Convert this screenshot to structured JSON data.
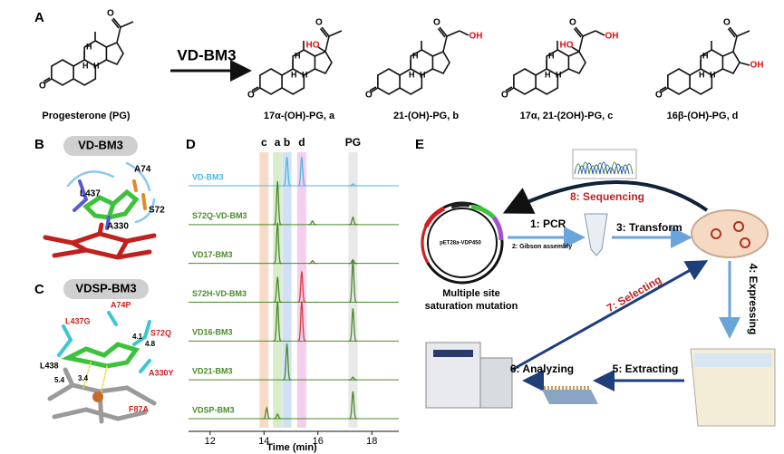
{
  "panels": {
    "a": "A",
    "b": "B",
    "c": "C",
    "d": "D",
    "e": "E"
  },
  "panel_a": {
    "enzyme": "VD-BM3",
    "ketone": "O",
    "ring_h": "H",
    "compounds": [
      {
        "label": "Progesterone (PG)",
        "groups": []
      },
      {
        "label": "17α-(OH)-PG, a",
        "groups": [
          "HO"
        ]
      },
      {
        "label": "21-(OH)-PG, b",
        "groups": [
          "OH"
        ]
      },
      {
        "label": "17α, 21-(2OH)-PG, c",
        "groups": [
          "HO",
          "OH"
        ]
      },
      {
        "label": "16β-(OH)-PG, d",
        "groups": [
          "OH"
        ]
      }
    ]
  },
  "panel_b": {
    "title": "VD-BM3",
    "residues": [
      "L437",
      "A74",
      "S72",
      "A330"
    ]
  },
  "panel_c": {
    "title": "VDSP-BM3",
    "mutations": [
      "A74P",
      "L437G",
      "S72Q",
      "A330Y",
      "F87A"
    ],
    "residues": [
      "L438"
    ],
    "distances": [
      "4.1",
      "4.8",
      "5.4",
      "3.4"
    ]
  },
  "chromatogram": {
    "x_label": "Time (min)",
    "xlim": [
      11.2,
      19
    ],
    "xticks": [
      12,
      14,
      16,
      18
    ],
    "bands": [
      {
        "label": "c",
        "center": 14,
        "color": "#f6d2b8"
      },
      {
        "label": "a",
        "center": 14.5,
        "color": "#cfe8c0"
      },
      {
        "label": "b",
        "center": 14.85,
        "color": "#c6d8f0"
      },
      {
        "label": "d",
        "center": 15.4,
        "color": "#f2c2ea"
      },
      {
        "label": "PG",
        "center": 17.3,
        "color": "#e2e2e2"
      }
    ],
    "traces": [
      {
        "name": "VD-BM3",
        "color": "#4fb8e0",
        "peaks": [
          {
            "time": 14.85,
            "height": 32
          },
          {
            "time": 15.4,
            "height": 32
          },
          {
            "time": 17.3,
            "height": 2
          }
        ]
      },
      {
        "name": "S72Q-VD-BM3",
        "color": "#4a8a2a",
        "peaks": [
          {
            "time": 14.5,
            "height": 48
          },
          {
            "time": 15.8,
            "height": 4
          },
          {
            "time": 17.3,
            "height": 8
          }
        ]
      },
      {
        "name": "VD17-BM3",
        "color": "#4a8a2a",
        "peaks": [
          {
            "time": 14.5,
            "height": 45
          },
          {
            "time": 15.8,
            "height": 3
          },
          {
            "time": 17.3,
            "height": 4
          }
        ]
      },
      {
        "name": "S72H-VD-BM3",
        "color": "#4a8a2a",
        "peaks": [
          {
            "time": 14.5,
            "height": 28
          },
          {
            "time": 15.4,
            "height": 34,
            "color": "#d04040"
          },
          {
            "time": 17.3,
            "height": 46
          }
        ]
      },
      {
        "name": "VD16-BM3",
        "color": "#4a8a2a",
        "peaks": [
          {
            "time": 14.5,
            "height": 44
          },
          {
            "time": 15.4,
            "height": 44,
            "color": "#d04040"
          },
          {
            "time": 17.3,
            "height": 36
          }
        ]
      },
      {
        "name": "VD21-BM3",
        "color": "#4a8a2a",
        "peaks": [
          {
            "time": 14.85,
            "height": 40
          },
          {
            "time": 17.3,
            "height": 3
          }
        ]
      },
      {
        "name": "VDSP-BM3",
        "color": "#4a8a2a",
        "peaks": [
          {
            "time": 14.1,
            "height": 12
          },
          {
            "time": 14.5,
            "height": 5
          },
          {
            "time": 17.3,
            "height": 30
          }
        ]
      }
    ]
  },
  "panel_e": {
    "plasmid": "pET28a-VDP450",
    "mutation_label": [
      "Multiple site",
      "saturation mutation"
    ],
    "steps": [
      "1: PCR",
      "2: Gibson assembly",
      "3: Transform",
      "4: Expressing",
      "5: Extracting",
      "6: Analyzing",
      "7: Selecting",
      "8: Sequencing"
    ]
  }
}
